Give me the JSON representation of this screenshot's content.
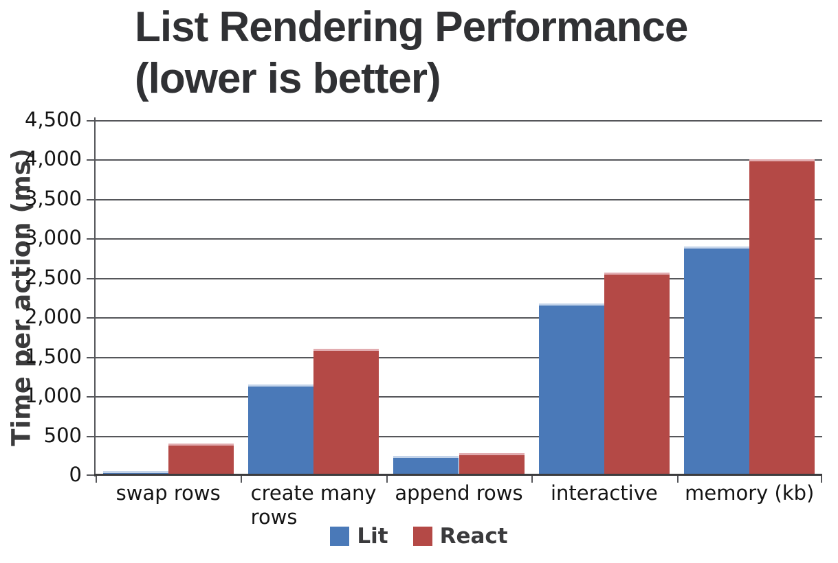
{
  "title": {
    "line1": "List Rendering Performance",
    "line2": "(lower is better)"
  },
  "chart_data": {
    "type": "bar",
    "title": "List Rendering Performance (lower is better)",
    "ylabel": "Time per action (ms)",
    "xlabel": "",
    "ylim": [
      0,
      4500
    ],
    "ytick_step": 500,
    "grid": true,
    "legend_position": "bottom",
    "categories": [
      "swap rows",
      "create many\nrows",
      "append rows",
      "interactive",
      "memory (kb)"
    ],
    "series": [
      {
        "name": "Lit",
        "color": "#4a79b8",
        "highlight_color": "#c4d4ea",
        "values": [
          50,
          1150,
          240,
          2180,
          2900
        ]
      },
      {
        "name": "React",
        "color": "#b44946",
        "highlight_color": "#e2acb0",
        "values": [
          400,
          1600,
          280,
          2570,
          4000
        ]
      }
    ],
    "colors": {
      "gridline": "#55565a",
      "axis": "#3c3c3e",
      "text": "#141414",
      "title": "#303134"
    }
  }
}
